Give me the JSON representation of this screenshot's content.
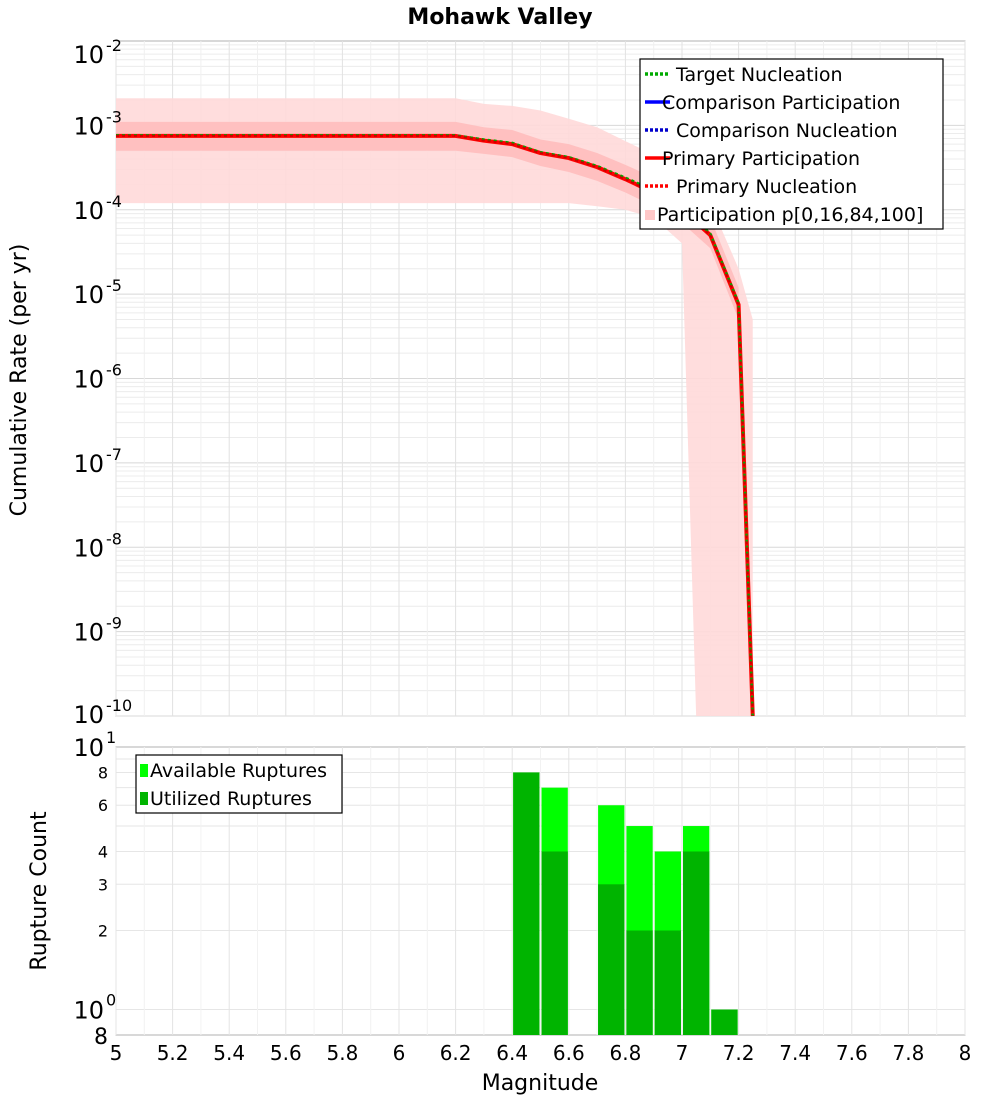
{
  "chart_data": [
    {
      "type": "line",
      "title": "Mohawk Valley",
      "ylabel": "Cumulative Rate (per yr)",
      "xlabel": "",
      "y_scale": "log",
      "xlim": [
        5,
        8
      ],
      "ylim": [
        1e-10,
        0.01
      ],
      "grid": true,
      "legend_position": "top-right",
      "y_ticks": [
        {
          "base": "10",
          "exp": "-2"
        },
        {
          "base": "10",
          "exp": "-3"
        },
        {
          "base": "10",
          "exp": "-4"
        },
        {
          "base": "10",
          "exp": "-5"
        },
        {
          "base": "10",
          "exp": "-6"
        },
        {
          "base": "10",
          "exp": "-7"
        },
        {
          "base": "10",
          "exp": "-8"
        },
        {
          "base": "10",
          "exp": "-9"
        },
        {
          "base": "10",
          "exp": "-10"
        }
      ],
      "legend": [
        {
          "label": "Target Nucleation",
          "color": "#00aa00",
          "style": "dotted"
        },
        {
          "label": "Comparison Participation",
          "color": "#0000ff",
          "style": "solid"
        },
        {
          "label": "Comparison Nucleation",
          "color": "#0000cc",
          "style": "dotted"
        },
        {
          "label": "Primary Participation",
          "color": "#ff0000",
          "style": "solid"
        },
        {
          "label": "Primary Nucleation",
          "color": "#ff0000",
          "style": "dotted"
        },
        {
          "label": "Participation p[0,16,84,100]",
          "color": "#ffc8c8",
          "style": "band"
        }
      ],
      "x": [
        5.0,
        6.2,
        6.3,
        6.4,
        6.5,
        6.6,
        6.7,
        6.8,
        6.9,
        7.0,
        7.1,
        7.2,
        7.25
      ],
      "series": [
        {
          "name": "Primary Participation",
          "color": "#ff0000",
          "values": [
            0.00075,
            0.00075,
            0.00066,
            0.0006,
            0.00047,
            0.00041,
            0.00032,
            0.00023,
            0.00016,
            0.0001,
            5e-05,
            7.5e-06,
            1e-10
          ]
        },
        {
          "name": "Target Nucleation",
          "color": "#00aa00",
          "values": [
            0.00076,
            0.00076,
            0.00068,
            0.00062,
            0.00048,
            0.00042,
            0.00033,
            0.00024,
            0.00017,
            0.00011,
            5.2e-05,
            7.8e-06,
            1e-10
          ]
        }
      ],
      "bands": [
        {
          "name": "p[0,100]",
          "color": "#ffd9d9",
          "x": [
            5.0,
            6.2,
            6.3,
            6.4,
            6.5,
            6.6,
            6.7,
            6.8,
            6.9,
            7.0,
            7.05,
            7.1,
            7.2,
            7.25
          ],
          "lower": [
            0.00012,
            0.00012,
            0.00012,
            0.00012,
            0.00012,
            0.00012,
            0.00011,
            0.0001,
            8e-05,
            4e-05,
            1e-10,
            1e-10,
            1e-10,
            1e-10
          ],
          "upper": [
            0.0021,
            0.0021,
            0.0018,
            0.0017,
            0.0015,
            0.0012,
            0.00095,
            0.00065,
            0.00045,
            0.00025,
            0.00018,
            0.00012,
            2e-05,
            5e-06
          ]
        },
        {
          "name": "p[16,84]",
          "color": "#ffbcbc",
          "x": [
            5.0,
            6.2,
            6.3,
            6.4,
            6.5,
            6.6,
            6.7,
            6.8,
            6.9,
            7.0,
            7.1,
            7.2
          ],
          "lower": [
            0.0005,
            0.0005,
            0.00046,
            0.00042,
            0.00033,
            0.00028,
            0.00022,
            0.00016,
            0.00011,
            7e-05,
            3.5e-05,
            5e-06
          ],
          "upper": [
            0.0011,
            0.0011,
            0.00095,
            0.00088,
            0.00068,
            0.0006,
            0.00047,
            0.00034,
            0.00024,
            0.00016,
            8e-05,
            1.2e-05
          ]
        }
      ]
    },
    {
      "type": "bar",
      "ylabel": "Rupture Count",
      "xlabel": "Magnitude",
      "y_scale": "log",
      "xlim": [
        5,
        8
      ],
      "ylim": [
        0.8,
        10
      ],
      "grid": true,
      "legend_position": "top-left",
      "x_ticks": [
        "5",
        "5.2",
        "5.4",
        "5.6",
        "5.8",
        "6",
        "6.2",
        "6.4",
        "6.6",
        "6.8",
        "7",
        "7.2",
        "7.4",
        "7.6",
        "7.8",
        "8"
      ],
      "y_ticks": [
        {
          "value": 10,
          "base": "10",
          "exp": "1"
        },
        {
          "value": 8,
          "label": "8"
        },
        {
          "value": 6,
          "label": "6"
        },
        {
          "value": 4,
          "label": "4"
        },
        {
          "value": 3,
          "label": "3"
        },
        {
          "value": 2,
          "label": "2"
        },
        {
          "value": 1,
          "base": "10",
          "exp": "0"
        },
        {
          "value": 0.8,
          "label": "8"
        }
      ],
      "legend": [
        {
          "label": "Available Ruptures",
          "color": "#00ff00"
        },
        {
          "label": "Utilized Ruptures",
          "color": "#00b400"
        }
      ],
      "bar_width": 0.1,
      "categories": [
        6.45,
        6.55,
        6.75,
        6.85,
        6.95,
        7.05,
        7.15
      ],
      "series": [
        {
          "name": "Available Ruptures",
          "color": "#00ff00",
          "values": [
            8,
            7,
            6,
            5,
            4,
            5,
            1
          ]
        },
        {
          "name": "Utilized Ruptures",
          "color": "#00b400",
          "values": [
            8,
            4,
            3,
            2,
            2,
            4,
            1
          ]
        }
      ]
    }
  ]
}
